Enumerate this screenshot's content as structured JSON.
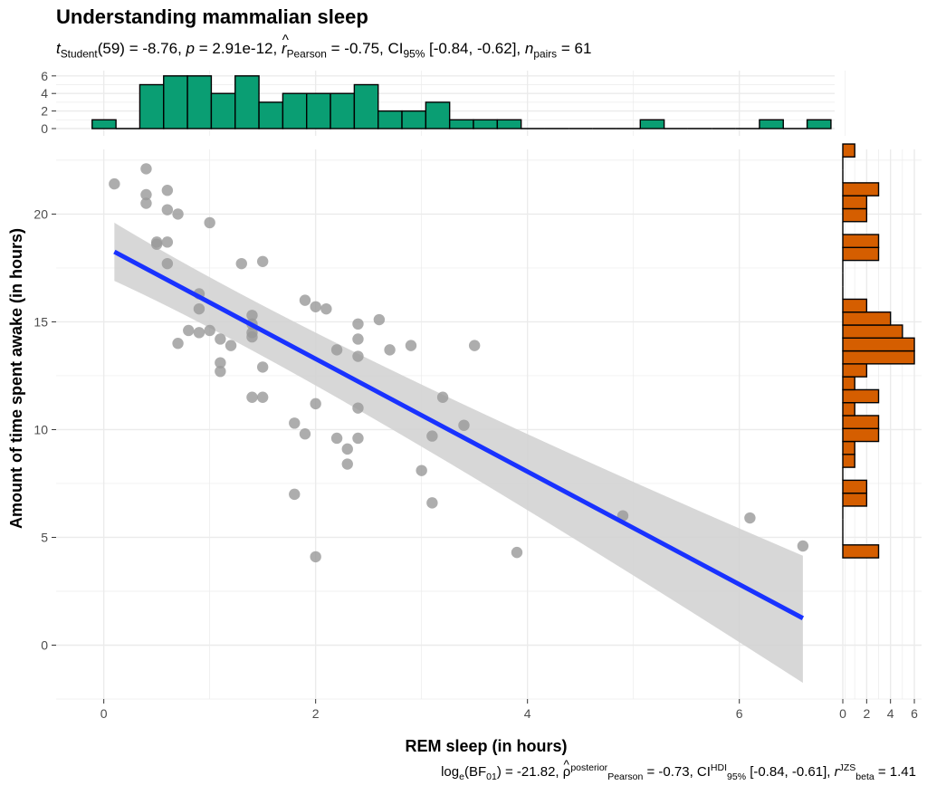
{
  "title": "Understanding mammalian sleep",
  "subtitle": {
    "t_label": "t",
    "t_sub": "Student",
    "t_value": "(59) = -8.76, ",
    "p_label": "p",
    "p_value": " = 2.91e-12, ",
    "r_label": "r",
    "r_sub": "Pearson",
    "r_value": " = -0.75, CI",
    "ci_sub": "95%",
    "ci_value": " [-0.84, -0.62], ",
    "n_label": "n",
    "n_sub": "pairs",
    "n_value": " = 61"
  },
  "caption": {
    "bf_label": "log",
    "bf_sub": "e",
    "bf_mid": "(BF",
    "bf_sub2": "01",
    "bf_value": ") = -21.82, ",
    "rho_label": "ρ",
    "rho_sup": "posterior",
    "rho_sub": "Pearson",
    "rho_value": " = -0.73, CI",
    "ci_sup": "HDI",
    "ci_sub": "95%",
    "ci_value": " [-0.84, -0.61], ",
    "r_label": "r",
    "r_sup": "JZS",
    "r_sub": "beta",
    "r_value": " = 1.41"
  },
  "chart_data": {
    "type": "scatter",
    "xlabel": "REM sleep (in hours)",
    "ylabel": "Amount of time spent awake (in hours)",
    "xlim": [
      -0.45,
      6.9
    ],
    "ylim": [
      -2.5,
      23.0
    ],
    "xticks": [
      0,
      2,
      4,
      6
    ],
    "yticks": [
      0,
      5,
      10,
      15,
      20
    ],
    "grid": true,
    "colors": {
      "points": "#999999",
      "line": "#1932ff",
      "band": "#d3d3d3",
      "top_hist": "#0a9e73",
      "right_hist": "#d55e00",
      "grid": "#ebebeb"
    },
    "points": [
      [
        0.1,
        21.4
      ],
      [
        0.4,
        22.1
      ],
      [
        0.4,
        20.9
      ],
      [
        0.4,
        20.5
      ],
      [
        0.6,
        21.1
      ],
      [
        0.6,
        20.2
      ],
      [
        0.7,
        20.0
      ],
      [
        1.0,
        19.6
      ],
      [
        0.5,
        18.7
      ],
      [
        0.5,
        18.6
      ],
      [
        0.6,
        18.7
      ],
      [
        0.6,
        17.7
      ],
      [
        1.3,
        17.7
      ],
      [
        1.5,
        17.8
      ],
      [
        0.9,
        16.3
      ],
      [
        0.9,
        15.6
      ],
      [
        1.4,
        15.3
      ],
      [
        1.4,
        14.9
      ],
      [
        1.4,
        14.5
      ],
      [
        1.4,
        14.3
      ],
      [
        0.8,
        14.6
      ],
      [
        0.9,
        14.5
      ],
      [
        1.0,
        14.6
      ],
      [
        1.1,
        14.2
      ],
      [
        0.7,
        14.0
      ],
      [
        1.2,
        13.9
      ],
      [
        1.1,
        13.1
      ],
      [
        1.1,
        12.7
      ],
      [
        1.5,
        12.9
      ],
      [
        1.4,
        11.5
      ],
      [
        1.5,
        11.5
      ],
      [
        1.9,
        16.0
      ],
      [
        2.0,
        15.7
      ],
      [
        2.1,
        15.6
      ],
      [
        2.4,
        14.9
      ],
      [
        2.6,
        15.1
      ],
      [
        2.4,
        14.2
      ],
      [
        2.2,
        13.7
      ],
      [
        2.4,
        13.4
      ],
      [
        2.7,
        13.7
      ],
      [
        2.9,
        13.9
      ],
      [
        3.5,
        13.9
      ],
      [
        3.2,
        11.5
      ],
      [
        2.0,
        11.2
      ],
      [
        2.4,
        11.0
      ],
      [
        1.8,
        10.3
      ],
      [
        3.4,
        10.2
      ],
      [
        1.9,
        9.8
      ],
      [
        2.2,
        9.6
      ],
      [
        2.4,
        9.6
      ],
      [
        3.1,
        9.7
      ],
      [
        2.3,
        9.1
      ],
      [
        2.3,
        8.4
      ],
      [
        3.0,
        8.1
      ],
      [
        1.8,
        7.0
      ],
      [
        3.1,
        6.6
      ],
      [
        4.9,
        6.0
      ],
      [
        6.1,
        5.9
      ],
      [
        6.6,
        4.6
      ],
      [
        3.9,
        4.3
      ],
      [
        2.0,
        4.1
      ]
    ],
    "regression": {
      "x": [
        0.1,
        6.6
      ],
      "fit": [
        18.25,
        1.25
      ],
      "ci_lower": [
        16.9,
        -1.75
      ],
      "ci_upper": [
        19.6,
        4.15
      ]
    },
    "top_histogram": {
      "ylabel_ticks": [
        0,
        2,
        4,
        6
      ],
      "bins_start": -0.11,
      "bin_width": 0.225,
      "counts": [
        1,
        0,
        5,
        6,
        6,
        4,
        6,
        3,
        4,
        4,
        4,
        5,
        2,
        2,
        3,
        1,
        1,
        1,
        0,
        0,
        0,
        0,
        0,
        1,
        0,
        0,
        0,
        0,
        1,
        0,
        1
      ]
    },
    "right_histogram": {
      "xlabel_ticks": [
        0,
        2,
        4,
        6
      ],
      "bins_start": 4.05,
      "bin_width": 0.6,
      "counts": [
        3,
        0,
        0,
        0,
        2,
        2,
        0,
        1,
        1,
        3,
        3,
        1,
        3,
        1,
        2,
        6,
        6,
        5,
        4,
        2,
        0,
        0,
        0,
        3,
        3,
        0,
        2,
        2,
        3,
        0,
        0,
        1
      ]
    }
  }
}
